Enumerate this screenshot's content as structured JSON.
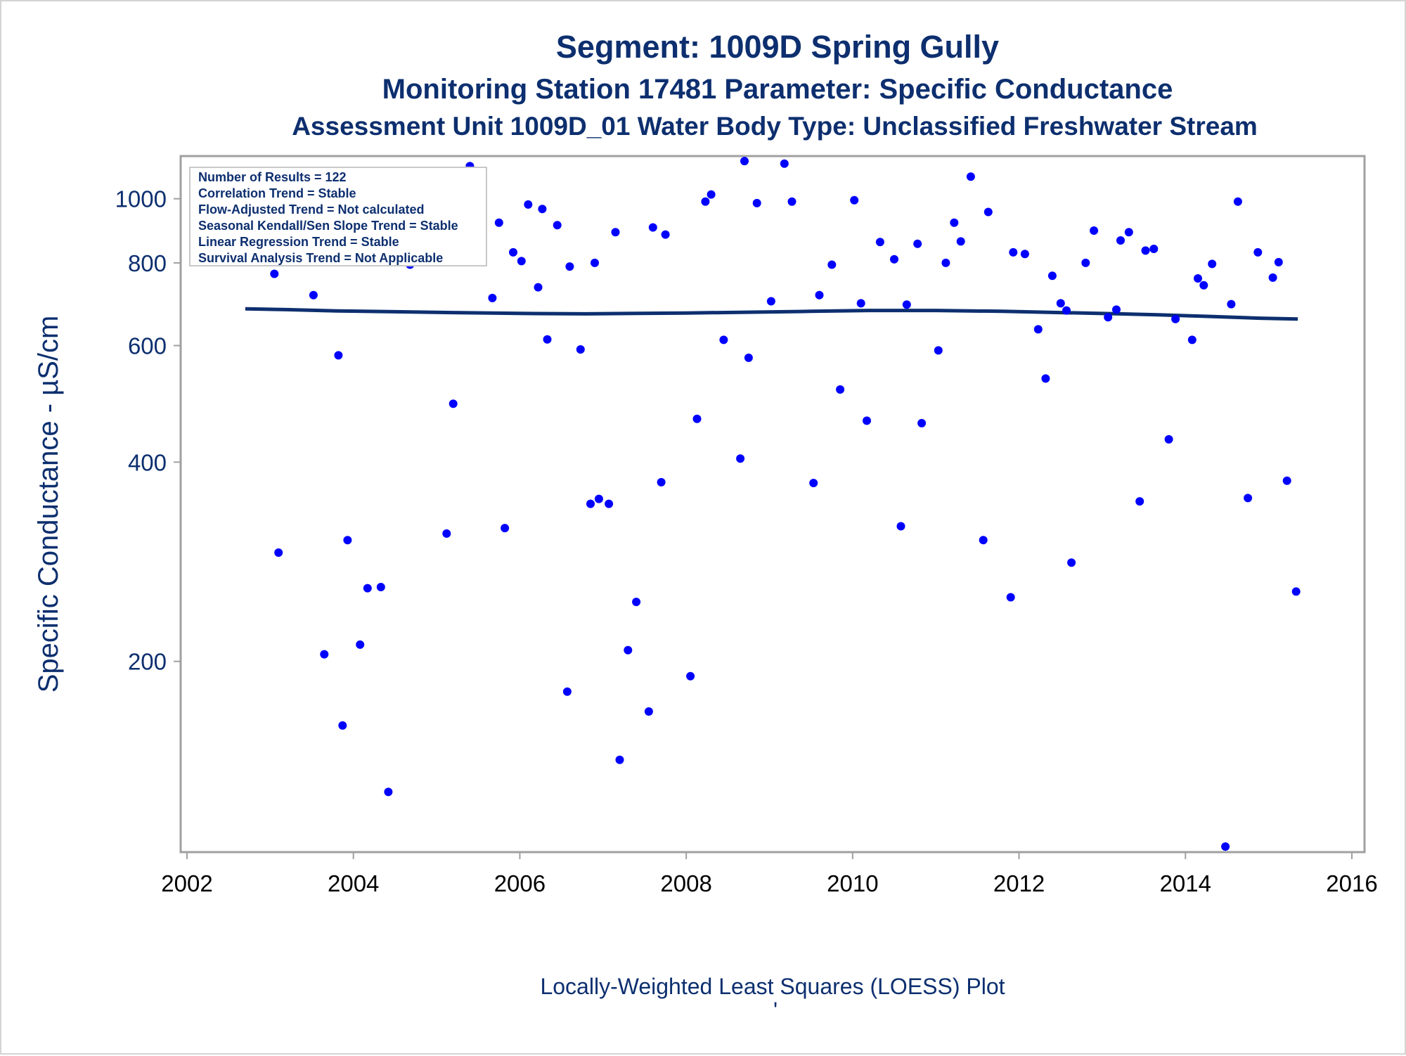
{
  "titles": {
    "line1": "Segment: 1009D  Spring Gully",
    "line2": "Monitoring Station 17481 Parameter: Specific Conductance",
    "line3": "Assessment Unit 1009D_01   Water Body Type: Unclassified Freshwater Stream"
  },
  "legend_box": {
    "lines": [
      "Number of Results = 122",
      "Correlation Trend = Stable",
      "Flow-Adjusted Trend = Not calculated",
      "Seasonal Kendall/Sen Slope Trend = Stable",
      "Linear Regression Trend = Stable",
      "Survival Analysis Trend = Not Applicable"
    ]
  },
  "footnote": "Locally-Weighted Least Squares (LOESS) Plot",
  "footnote_mark": "'",
  "colors": {
    "title": "#0d2f6f",
    "points": "#0000ff",
    "loess": "#0d2f6f",
    "frame": "#a0a0a0"
  },
  "chart_data": {
    "type": "scatter",
    "ylabel": "Specific Conductance -  µS/cm",
    "xlabel": "",
    "y_scale": "log",
    "xlim": [
      2002,
      2016
    ],
    "ylim": [
      103,
      1160
    ],
    "x_ticks": [
      "2002",
      "2004",
      "2006",
      "2008",
      "2010",
      "2012",
      "2014",
      "2016"
    ],
    "y_ticks": [
      "200",
      "400",
      "600",
      "800",
      "1000"
    ],
    "points": [
      [
        2002.7,
        990
      ],
      [
        2002.75,
        825
      ],
      [
        2002.9,
        960
      ],
      [
        2002.93,
        910
      ],
      [
        2003.05,
        770
      ],
      [
        2003.1,
        292
      ],
      [
        2003.27,
        900
      ],
      [
        2003.35,
        865
      ],
      [
        2003.45,
        860
      ],
      [
        2003.52,
        715
      ],
      [
        2003.58,
        895
      ],
      [
        2003.65,
        205
      ],
      [
        2003.82,
        580
      ],
      [
        2003.87,
        160
      ],
      [
        2003.93,
        305
      ],
      [
        2004.02,
        930
      ],
      [
        2004.08,
        212
      ],
      [
        2004.17,
        258
      ],
      [
        2004.25,
        905
      ],
      [
        2004.33,
        259
      ],
      [
        2004.42,
        127
      ],
      [
        2004.53,
        875
      ],
      [
        2004.6,
        970
      ],
      [
        2004.68,
        795
      ],
      [
        2004.8,
        1005
      ],
      [
        2004.85,
        835
      ],
      [
        2004.97,
        840
      ],
      [
        2005.02,
        820
      ],
      [
        2005.12,
        312
      ],
      [
        2005.2,
        490
      ],
      [
        2005.3,
        870
      ],
      [
        2005.4,
        1120
      ],
      [
        2005.67,
        708
      ],
      [
        2005.75,
        920
      ],
      [
        2005.82,
        318
      ],
      [
        2005.92,
        830
      ],
      [
        2006.02,
        805
      ],
      [
        2006.1,
        980
      ],
      [
        2006.22,
        735
      ],
      [
        2006.27,
        965
      ],
      [
        2006.33,
        613
      ],
      [
        2006.45,
        912
      ],
      [
        2006.57,
        180
      ],
      [
        2006.6,
        790
      ],
      [
        2006.73,
        592
      ],
      [
        2006.85,
        346
      ],
      [
        2006.9,
        800
      ],
      [
        2006.95,
        352
      ],
      [
        2007.07,
        346
      ],
      [
        2007.15,
        890
      ],
      [
        2007.3,
        208
      ],
      [
        2007.2,
        142
      ],
      [
        2007.4,
        246
      ],
      [
        2007.55,
        168
      ],
      [
        2007.6,
        905
      ],
      [
        2007.7,
        373
      ],
      [
        2007.75,
        883
      ],
      [
        2008.05,
        190
      ],
      [
        2008.13,
        465
      ],
      [
        2008.23,
        990
      ],
      [
        2008.3,
        1015
      ],
      [
        2008.45,
        612
      ],
      [
        2008.65,
        405
      ],
      [
        2008.7,
        1140
      ],
      [
        2008.75,
        575
      ],
      [
        2008.85,
        985
      ],
      [
        2009.02,
        700
      ],
      [
        2009.18,
        1130
      ],
      [
        2009.27,
        990
      ],
      [
        2009.53,
        372
      ],
      [
        2009.6,
        715
      ],
      [
        2009.75,
        795
      ],
      [
        2009.85,
        515
      ],
      [
        2010.02,
        995
      ],
      [
        2010.1,
        695
      ],
      [
        2010.17,
        462
      ],
      [
        2010.33,
        860
      ],
      [
        2010.5,
        810
      ],
      [
        2010.58,
        320
      ],
      [
        2010.65,
        692
      ],
      [
        2010.78,
        855
      ],
      [
        2010.83,
        458
      ],
      [
        2011.03,
        590
      ],
      [
        2011.12,
        800
      ],
      [
        2011.22,
        920
      ],
      [
        2011.3,
        862
      ],
      [
        2011.42,
        1080
      ],
      [
        2011.57,
        305
      ],
      [
        2011.63,
        955
      ],
      [
        2011.9,
        250
      ],
      [
        2011.93,
        830
      ],
      [
        2012.07,
        825
      ],
      [
        2012.23,
        635
      ],
      [
        2012.32,
        535
      ],
      [
        2012.4,
        765
      ],
      [
        2012.5,
        695
      ],
      [
        2012.57,
        678
      ],
      [
        2012.63,
        282
      ],
      [
        2012.8,
        800
      ],
      [
        2012.9,
        895
      ],
      [
        2013.07,
        662
      ],
      [
        2013.17,
        680
      ],
      [
        2013.22,
        865
      ],
      [
        2013.32,
        890
      ],
      [
        2013.45,
        349
      ],
      [
        2013.52,
        835
      ],
      [
        2013.62,
        840
      ],
      [
        2013.8,
        433
      ],
      [
        2013.88,
        658
      ],
      [
        2014.08,
        612
      ],
      [
        2014.15,
        758
      ],
      [
        2014.22,
        740
      ],
      [
        2014.32,
        797
      ],
      [
        2014.48,
        105
      ],
      [
        2014.55,
        693
      ],
      [
        2014.63,
        990
      ],
      [
        2014.75,
        353
      ],
      [
        2014.87,
        830
      ],
      [
        2015.05,
        760
      ],
      [
        2015.12,
        802
      ],
      [
        2015.22,
        375
      ],
      [
        2015.33,
        255
      ]
    ],
    "loess": {
      "x": [
        2002.7,
        2003.2,
        2003.8,
        2004.5,
        2005.2,
        2006.0,
        2006.8,
        2007.4,
        2008.0,
        2008.8,
        2009.5,
        2010.2,
        2011.0,
        2011.8,
        2012.5,
        2013.2,
        2013.8,
        2014.3,
        2014.9,
        2015.35
      ],
      "y": [
        682,
        680,
        677,
        675,
        673,
        671,
        670,
        671,
        672,
        674,
        676,
        678,
        678,
        676,
        673,
        670,
        667,
        664,
        660,
        658
      ]
    }
  }
}
